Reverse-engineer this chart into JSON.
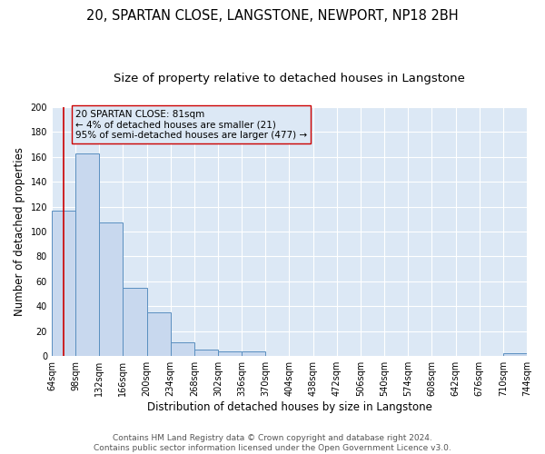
{
  "title": "20, SPARTAN CLOSE, LANGSTONE, NEWPORT, NP18 2BH",
  "subtitle": "Size of property relative to detached houses in Langstone",
  "xlabel": "Distribution of detached houses by size in Langstone",
  "ylabel": "Number of detached properties",
  "bin_edges": [
    64,
    98,
    132,
    166,
    200,
    234,
    268,
    302,
    336,
    370,
    404,
    438,
    472,
    506,
    540,
    574,
    608,
    642,
    676,
    710,
    744
  ],
  "bar_heights": [
    117,
    163,
    107,
    55,
    35,
    11,
    5,
    4,
    4,
    0,
    0,
    0,
    0,
    0,
    0,
    0,
    0,
    0,
    0,
    2
  ],
  "bar_color": "#c8d8ee",
  "bar_edge_color": "#5a8fc0",
  "property_size": 81,
  "red_line_color": "#cc0000",
  "annotation_box_edge_color": "#cc0000",
  "annotation_text_line1": "20 SPARTAN CLOSE: 81sqm",
  "annotation_text_line2": "← 4% of detached houses are smaller (21)",
  "annotation_text_line3": "95% of semi-detached houses are larger (477) →",
  "ylim": [
    0,
    200
  ],
  "yticks": [
    0,
    20,
    40,
    60,
    80,
    100,
    120,
    140,
    160,
    180,
    200
  ],
  "footer_line1": "Contains HM Land Registry data © Crown copyright and database right 2024.",
  "footer_line2": "Contains public sector information licensed under the Open Government Licence v3.0.",
  "plot_bg_color": "#dce8f5",
  "fig_bg_color": "#ffffff",
  "grid_color": "#ffffff",
  "title_fontsize": 10.5,
  "subtitle_fontsize": 9.5,
  "tick_label_fontsize": 7,
  "axis_label_fontsize": 8.5,
  "annotation_fontsize": 7.5,
  "footer_fontsize": 6.5
}
